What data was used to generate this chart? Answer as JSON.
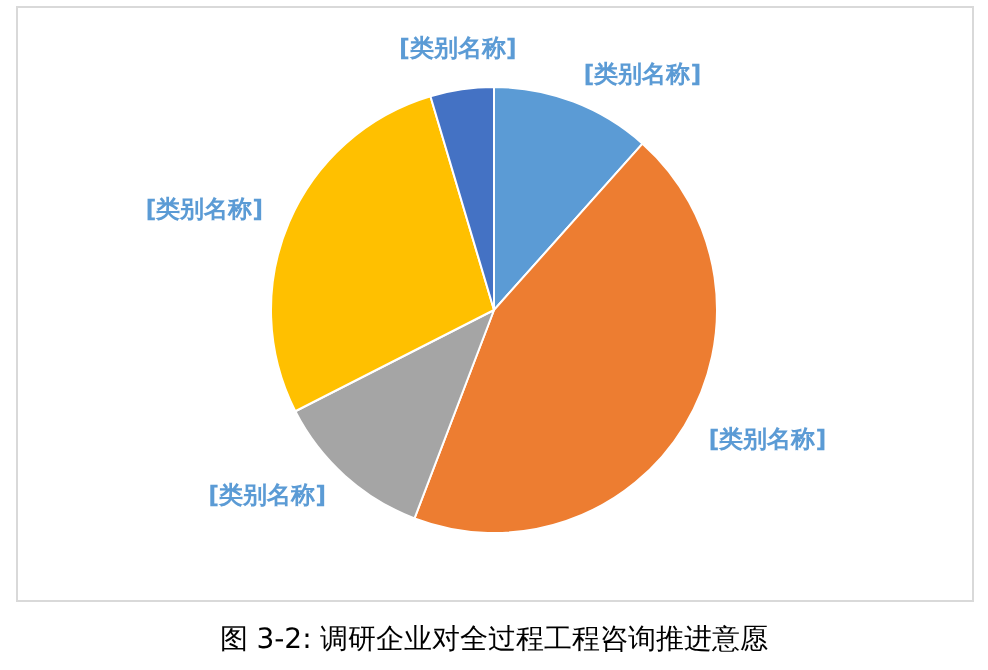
{
  "chart_data": {
    "type": "pie",
    "title": "图 3-2: 调研企业对全过程工程咨询推进意愿",
    "categories": [
      "[类别名称]",
      "[类别名称]",
      "[类别名称]",
      "[类别名称]",
      "[类别名称]"
    ],
    "values": [
      11.6,
      44.2,
      11.7,
      27.9,
      4.6
    ],
    "colors": [
      "#5b9bd5",
      "#ed7d31",
      "#a5a5a5",
      "#ffc000",
      "#4472c4"
    ],
    "legend": false
  }
}
